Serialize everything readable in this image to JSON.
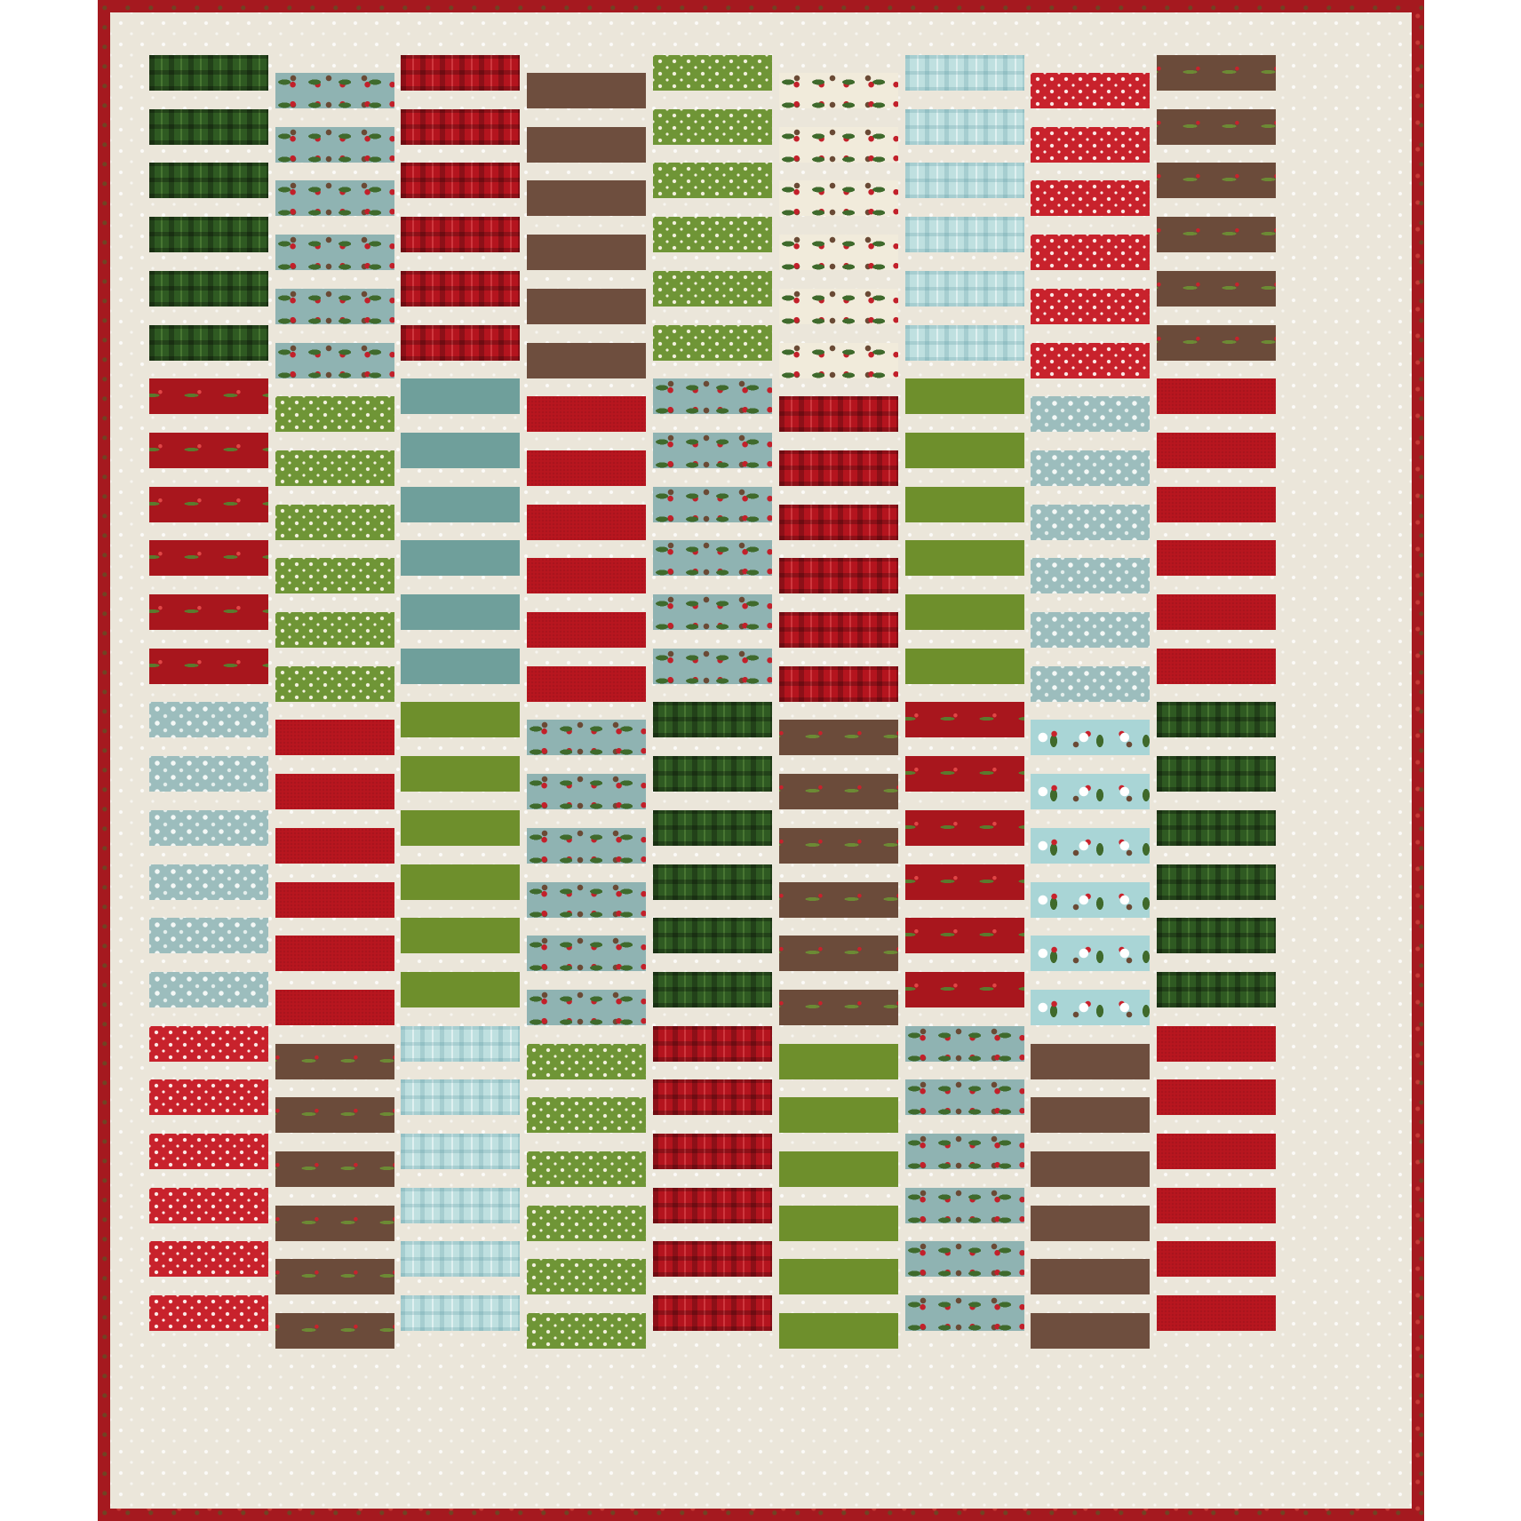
{
  "quilt": {
    "column_count": 9,
    "columns": [
      [
        {
          "fabric": "green-plaid",
          "count": 6
        },
        {
          "fabric": "red-sprig",
          "count": 6
        },
        {
          "fabric": "blue-star",
          "count": 6
        },
        {
          "fabric": "red-dot",
          "count": 6
        }
      ],
      [
        {
          "fabric": "holly-blue",
          "count": 6
        },
        {
          "fabric": "green-dot",
          "count": 6
        },
        {
          "fabric": "red-solid",
          "count": 6
        },
        {
          "fabric": "brown-sprig",
          "count": 6
        }
      ],
      [
        {
          "fabric": "red-plaid",
          "count": 6
        },
        {
          "fabric": "teal-solid",
          "count": 6
        },
        {
          "fabric": "green-solid",
          "count": 6
        },
        {
          "fabric": "aqua-plaid",
          "count": 6
        }
      ],
      [
        {
          "fabric": "brown",
          "count": 6
        },
        {
          "fabric": "red-solid",
          "count": 6
        },
        {
          "fabric": "holly-blue",
          "count": 6
        },
        {
          "fabric": "green-dot",
          "count": 6
        }
      ],
      [
        {
          "fabric": "green-dot",
          "count": 6
        },
        {
          "fabric": "holly-blue",
          "count": 6
        },
        {
          "fabric": "green-plaid",
          "count": 6
        },
        {
          "fabric": "red-plaid",
          "count": 6
        }
      ],
      [
        {
          "fabric": "holly-cream",
          "count": 6
        },
        {
          "fabric": "red-plaid",
          "count": 6
        },
        {
          "fabric": "brown-sprig",
          "count": 6
        },
        {
          "fabric": "green-solid",
          "count": 6
        }
      ],
      [
        {
          "fabric": "aqua-plaid",
          "count": 6
        },
        {
          "fabric": "green-solid",
          "count": 6
        },
        {
          "fabric": "red-sprig",
          "count": 6
        },
        {
          "fabric": "holly-blue",
          "count": 6
        }
      ],
      [
        {
          "fabric": "red-dot",
          "count": 6
        },
        {
          "fabric": "blue-star",
          "count": 6
        },
        {
          "fabric": "scene",
          "count": 6
        },
        {
          "fabric": "brown",
          "count": 6
        }
      ],
      [
        {
          "fabric": "brown-sprig",
          "count": 6
        },
        {
          "fabric": "red-solid",
          "count": 6
        },
        {
          "fabric": "green-plaid",
          "count": 6
        },
        {
          "fabric": "red-solid",
          "count": 6
        }
      ]
    ],
    "colors": {
      "border": "#a5191f",
      "background": "#ebe6da",
      "green-plaid": "#2f5a22",
      "red-plaid": "#b4141e",
      "aqua-plaid": "#bfe0e0",
      "brown": "#6e4e3e",
      "red-solid": "#b8161f",
      "teal-solid": "#6f9f9b",
      "green-solid": "#6e8f2c",
      "green-dot": "#6f9536",
      "red-dot": "#c8222c",
      "blue-star": "#9cbdbd",
      "holly-blue": "#8fb3b2",
      "holly-cream": "#f1ebdb",
      "red-sprig": "#a8161d",
      "brown-sprig": "#6b4b3a",
      "scene": "#a9d5d6"
    }
  }
}
